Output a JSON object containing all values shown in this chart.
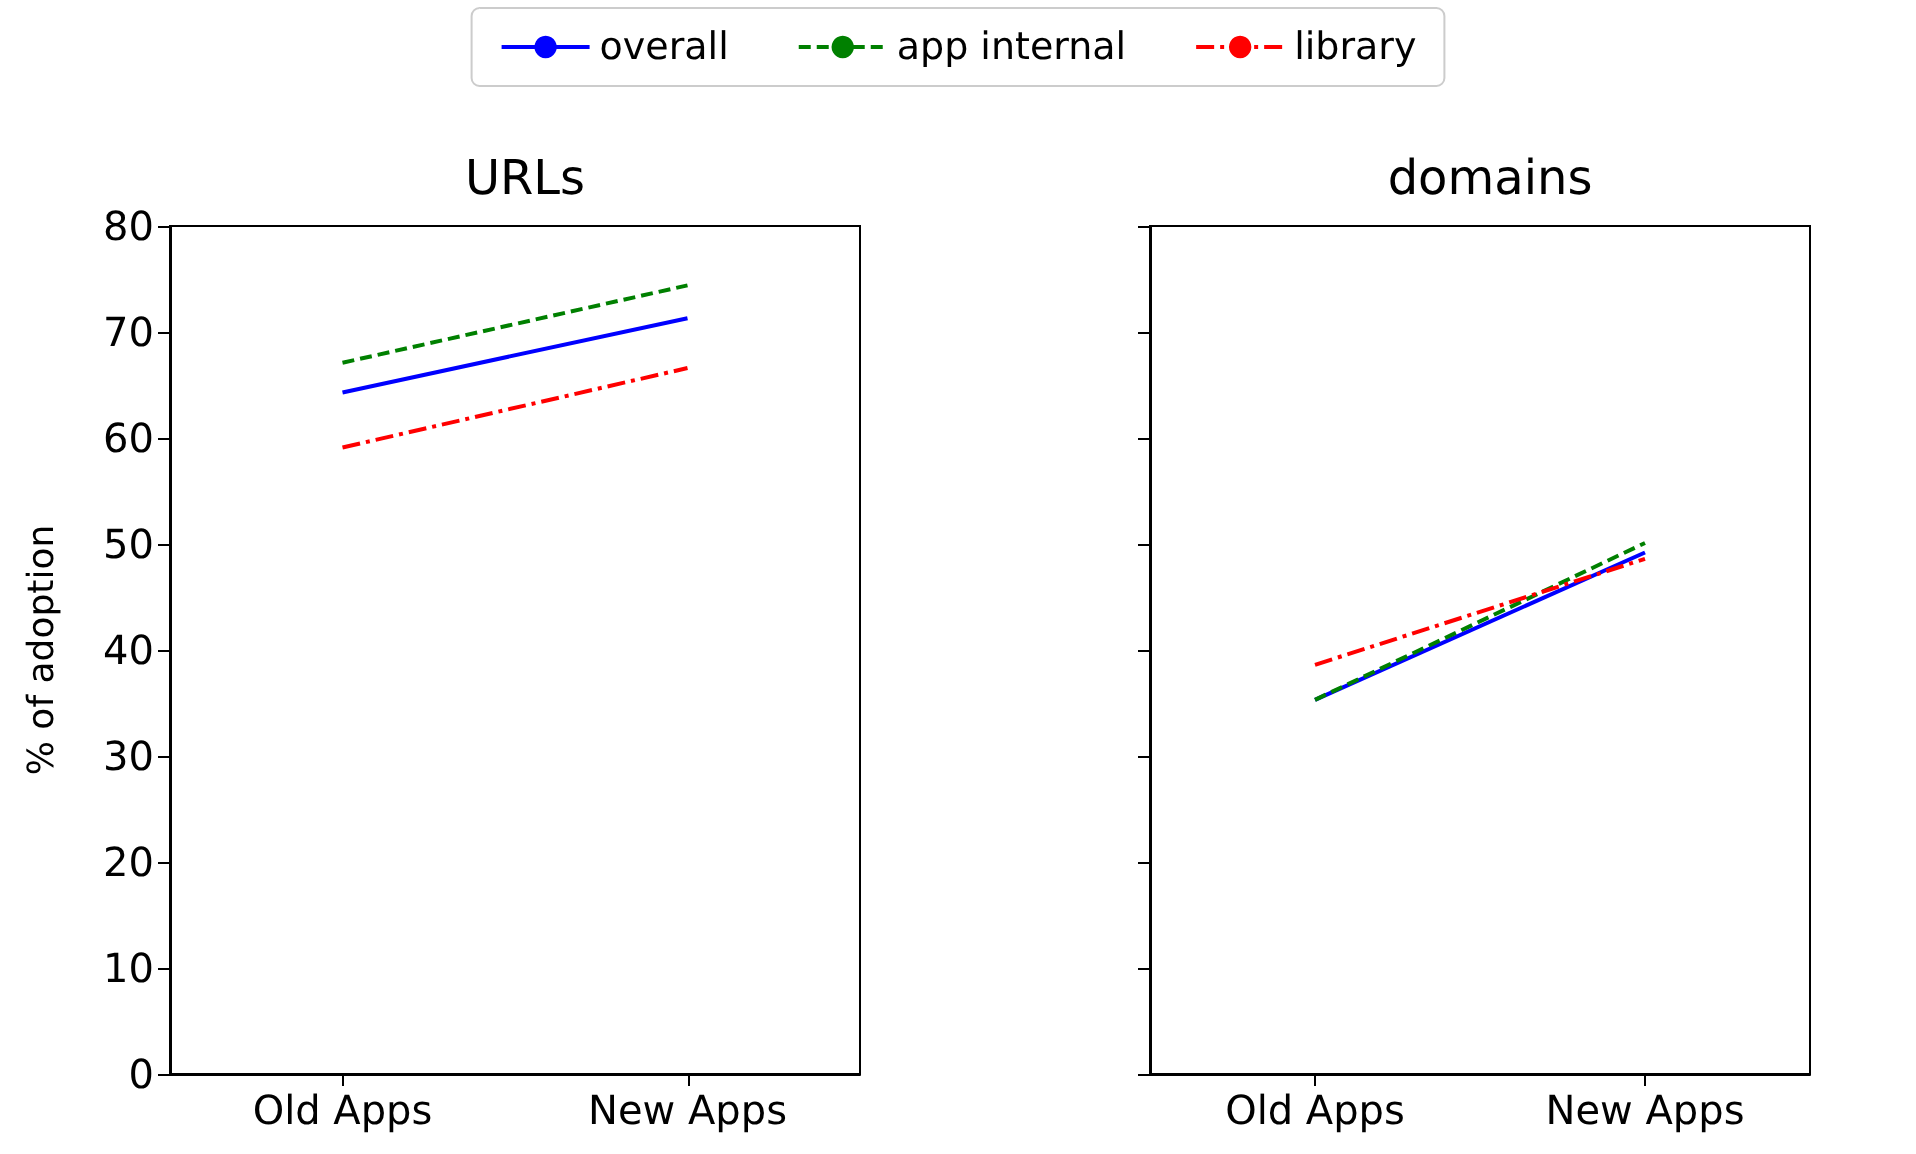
{
  "chart_data": [
    {
      "type": "line",
      "title": "URLs",
      "ylabel": "% of adoption",
      "categories": [
        "Old Apps",
        "New Apps"
      ],
      "ylim": [
        0,
        80
      ],
      "yticks": [
        0,
        10,
        20,
        30,
        40,
        50,
        60,
        70,
        80
      ],
      "legend": "top",
      "grid": false,
      "series": [
        {
          "name": "overall",
          "color": "#0000ff",
          "values": [
            64.3,
            71.3
          ],
          "line_style": "solid"
        },
        {
          "name": "app internal",
          "color": "#008000",
          "values": [
            67.1,
            74.4
          ],
          "line_style": "dashed"
        },
        {
          "name": "library",
          "color": "#ff0000",
          "values": [
            59.1,
            66.6
          ],
          "line_style": "dashdot"
        }
      ]
    },
    {
      "type": "line",
      "title": "domains",
      "categories": [
        "Old Apps",
        "New Apps"
      ],
      "ylim": [
        0,
        80
      ],
      "yticks": [
        0,
        10,
        20,
        30,
        40,
        50,
        60,
        70,
        80
      ],
      "tick_labels": "x",
      "grid": false,
      "series": [
        {
          "color": "#0000ff",
          "values": [
            35.3,
            49.2
          ],
          "line_style": "solid"
        },
        {
          "color": "#008000",
          "values": [
            35.3,
            50.1
          ],
          "line_style": "dashed"
        },
        {
          "color": "#ff0000",
          "values": [
            38.6,
            48.6
          ],
          "line_style": "dashdot"
        }
      ]
    }
  ]
}
